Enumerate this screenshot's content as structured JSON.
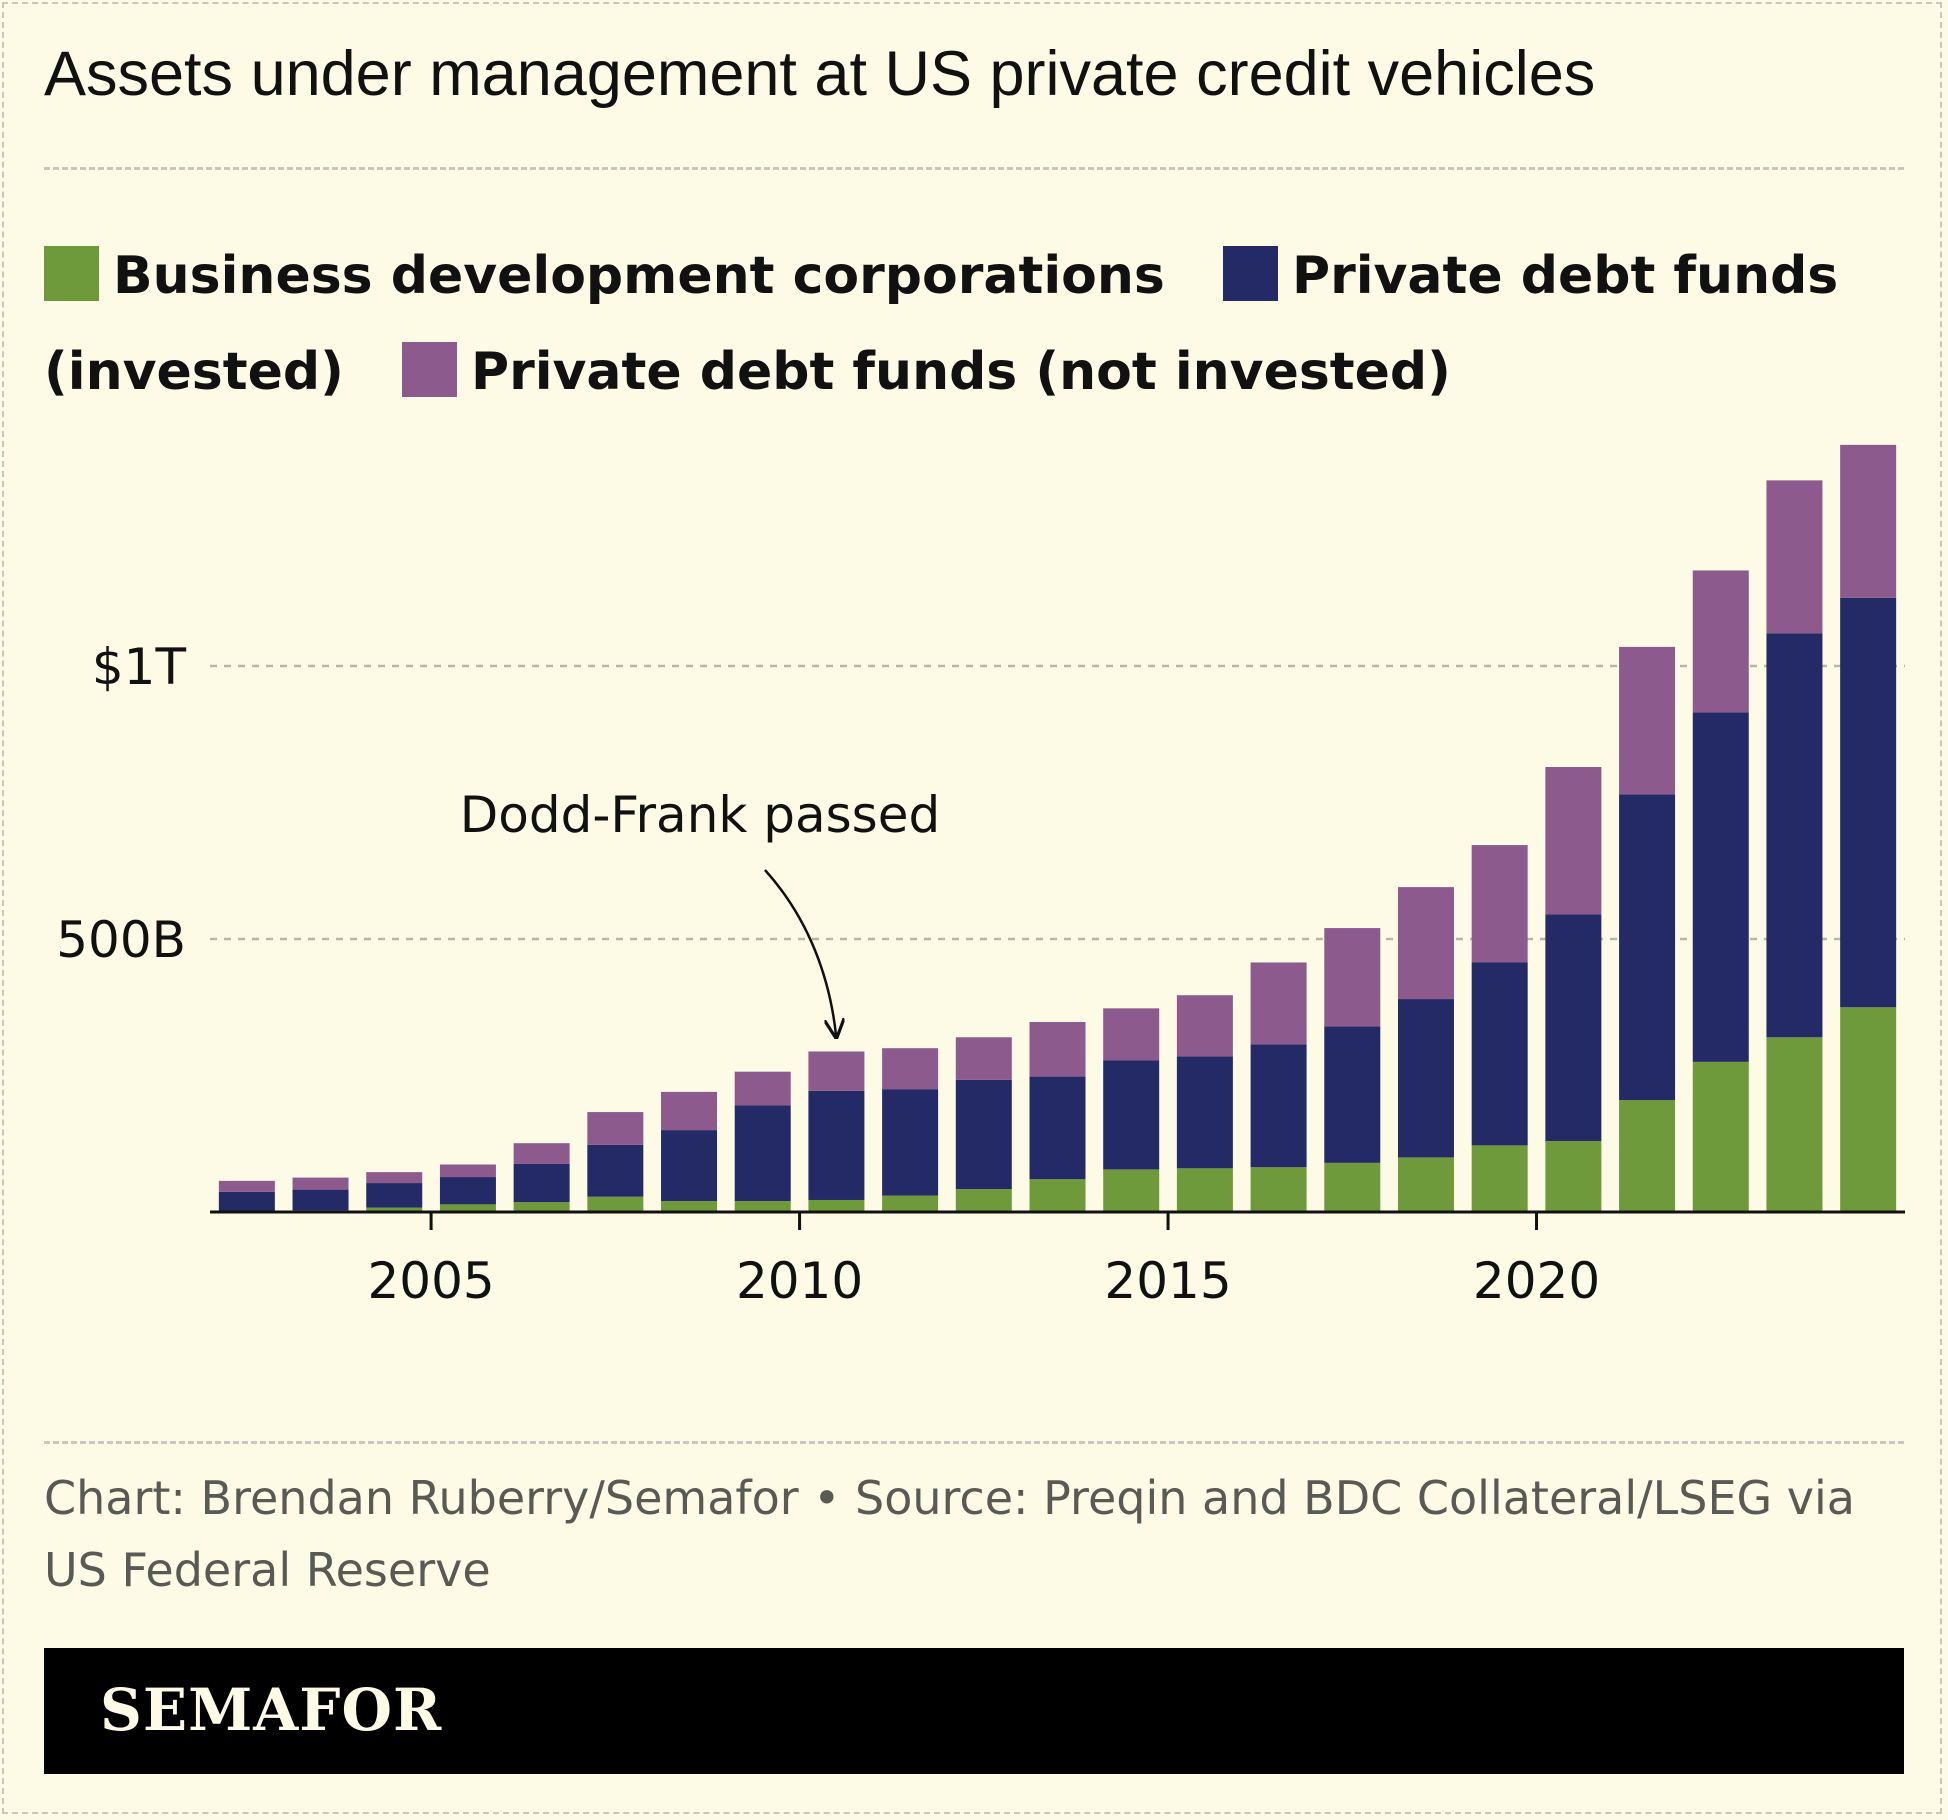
{
  "title": "Assets under management at US private credit vehicles",
  "legend": [
    {
      "label": "Business development corporations",
      "color": "#6f9a3c"
    },
    {
      "label": "Private debt funds (invested)",
      "color": "#232a66"
    },
    {
      "label": "Private debt funds (not invested)",
      "color": "#8c5a8c"
    }
  ],
  "annotation": "Dodd-Frank passed",
  "source": "Chart: Brendan Ruberry/Semafor • Source: Preqin and BDC Collateral/LSEG via US Federal Reserve",
  "brand": "SEMAFOR",
  "chart_data": {
    "type": "bar",
    "stacked": true,
    "x": [
      2002,
      2003,
      2004,
      2005,
      2006,
      2007,
      2008,
      2009,
      2010,
      2011,
      2012,
      2013,
      2014,
      2015,
      2016,
      2017,
      2018,
      2019,
      2020,
      2021,
      2022,
      2023,
      2024
    ],
    "series": [
      {
        "name": "Business development corporations",
        "color": "#6f9a3c",
        "values": [
          2,
          3,
          8,
          14,
          18,
          28,
          20,
          20,
          22,
          30,
          42,
          60,
          78,
          80,
          82,
          90,
          100,
          122,
          130,
          205,
          275,
          320,
          375
        ]
      },
      {
        "name": "Private debt funds (invested)",
        "color": "#232a66",
        "values": [
          35,
          38,
          45,
          50,
          70,
          95,
          130,
          175,
          200,
          195,
          200,
          188,
          200,
          205,
          225,
          250,
          290,
          335,
          415,
          560,
          640,
          740,
          750
        ]
      },
      {
        "name": "Private debt funds (not invested)",
        "color": "#8c5a8c",
        "values": [
          20,
          22,
          20,
          23,
          38,
          60,
          70,
          62,
          72,
          75,
          78,
          100,
          95,
          112,
          150,
          180,
          205,
          215,
          270,
          270,
          260,
          280,
          280
        ]
      }
    ],
    "yticks": [
      500,
      1000
    ],
    "ytick_labels": [
      "500B",
      "$1T"
    ],
    "xticks": [
      2005,
      2010,
      2015,
      2020
    ],
    "xtick_labels": [
      "2005",
      "2010",
      "2015",
      "2020"
    ],
    "ylim": [
      0,
      1420
    ],
    "grid": "horizontal dashed",
    "annotation": {
      "text": "Dodd-Frank passed",
      "x": 2010
    }
  }
}
